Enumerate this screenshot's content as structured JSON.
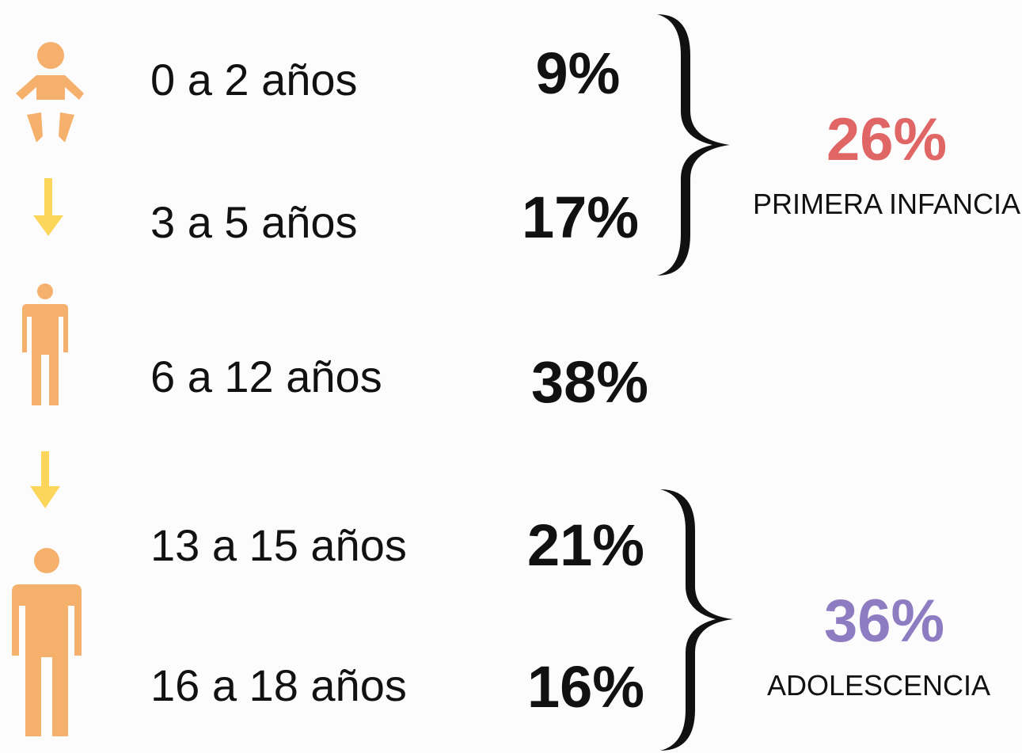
{
  "rows": [
    {
      "label": "0 a 2 años",
      "value": "9%"
    },
    {
      "label": "3 a 5 años",
      "value": "17%"
    },
    {
      "label": "6 a 12 años",
      "value": "38%",
      "color": "#93c47d"
    },
    {
      "label": "13 a 15 años",
      "value": "21%"
    },
    {
      "label": "16 a 18 años",
      "value": "16%"
    }
  ],
  "groups": [
    {
      "value": "26%",
      "label": "PRIMERA INFANCIA",
      "color": "#e06666"
    },
    {
      "value": "36%",
      "label": "ADOLESCENCIA",
      "color": "#8e7cc3"
    }
  ]
}
